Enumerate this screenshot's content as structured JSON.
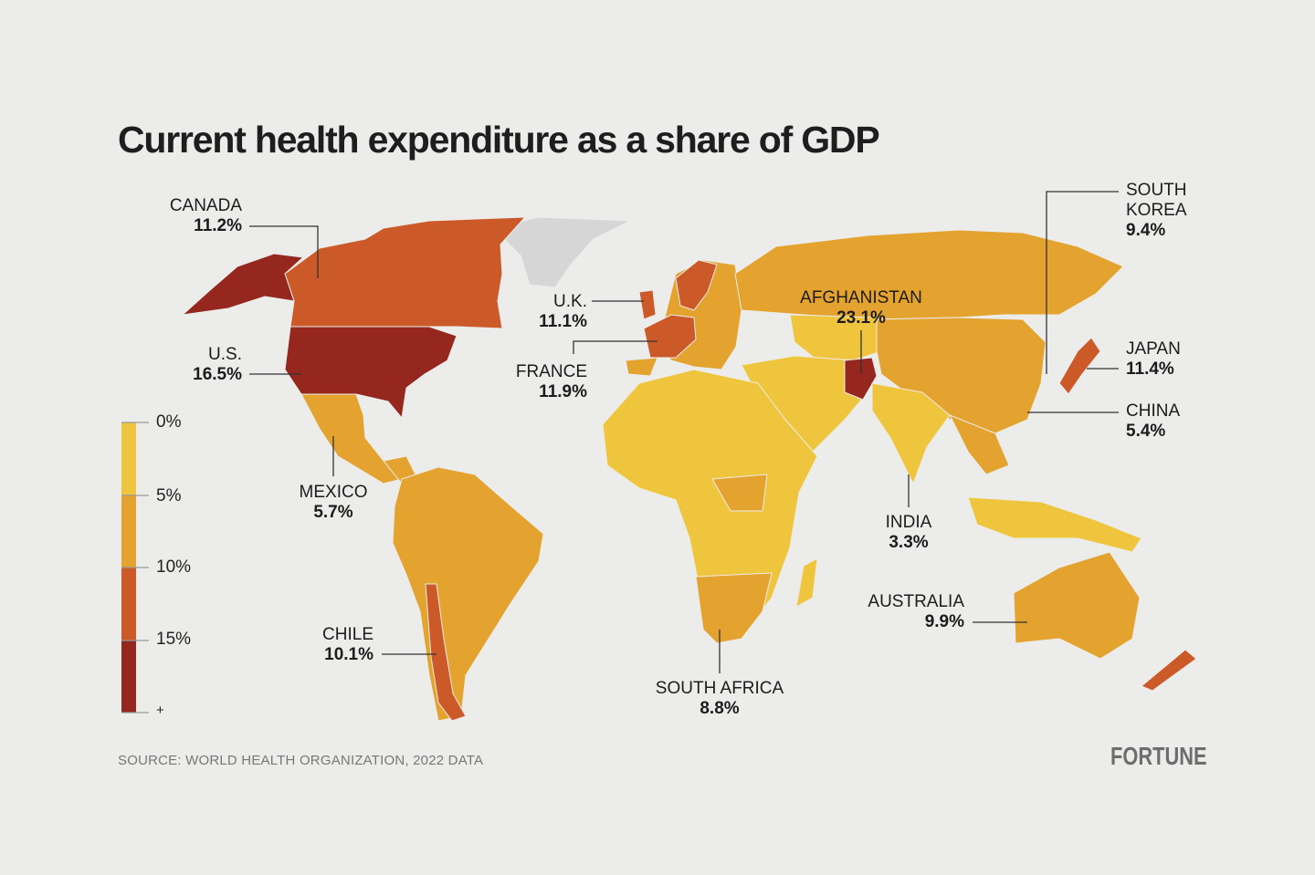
{
  "title": "Current health expenditure as a share of GDP",
  "legend": {
    "ticks": [
      "0%",
      "5%",
      "10%",
      "15%",
      "+"
    ],
    "bins": [
      {
        "range": "0-5%",
        "color": "#f0c53e"
      },
      {
        "range": "5-10%",
        "color": "#e4a22e"
      },
      {
        "range": "10-15%",
        "color": "#cc5a29"
      },
      {
        "range": "15%+",
        "color": "#95271e"
      }
    ],
    "no_data_color": "#d6d6d6"
  },
  "annotations": [
    {
      "country": "CANADA",
      "value": "11.2%"
    },
    {
      "country": "U.S.",
      "value": "16.5%"
    },
    {
      "country": "MEXICO",
      "value": "5.7%"
    },
    {
      "country": "CHILE",
      "value": "10.1%"
    },
    {
      "country": "U.K.",
      "value": "11.1%"
    },
    {
      "country": "FRANCE",
      "value": "11.9%"
    },
    {
      "country": "AFGHANISTAN",
      "value": "23.1%"
    },
    {
      "country": "SOUTH KOREA",
      "line1": "SOUTH",
      "line2": "KOREA",
      "value": "9.4%"
    },
    {
      "country": "JAPAN",
      "value": "11.4%"
    },
    {
      "country": "CHINA",
      "value": "5.4%"
    },
    {
      "country": "INDIA",
      "value": "3.3%"
    },
    {
      "country": "AUSTRALIA",
      "value": "9.9%"
    },
    {
      "country": "SOUTH AFRICA",
      "value": "8.8%"
    }
  ],
  "source": "SOURCE:  WORLD HEALTH ORGANIZATION, 2022 DATA",
  "logo": "FORTUNE"
}
